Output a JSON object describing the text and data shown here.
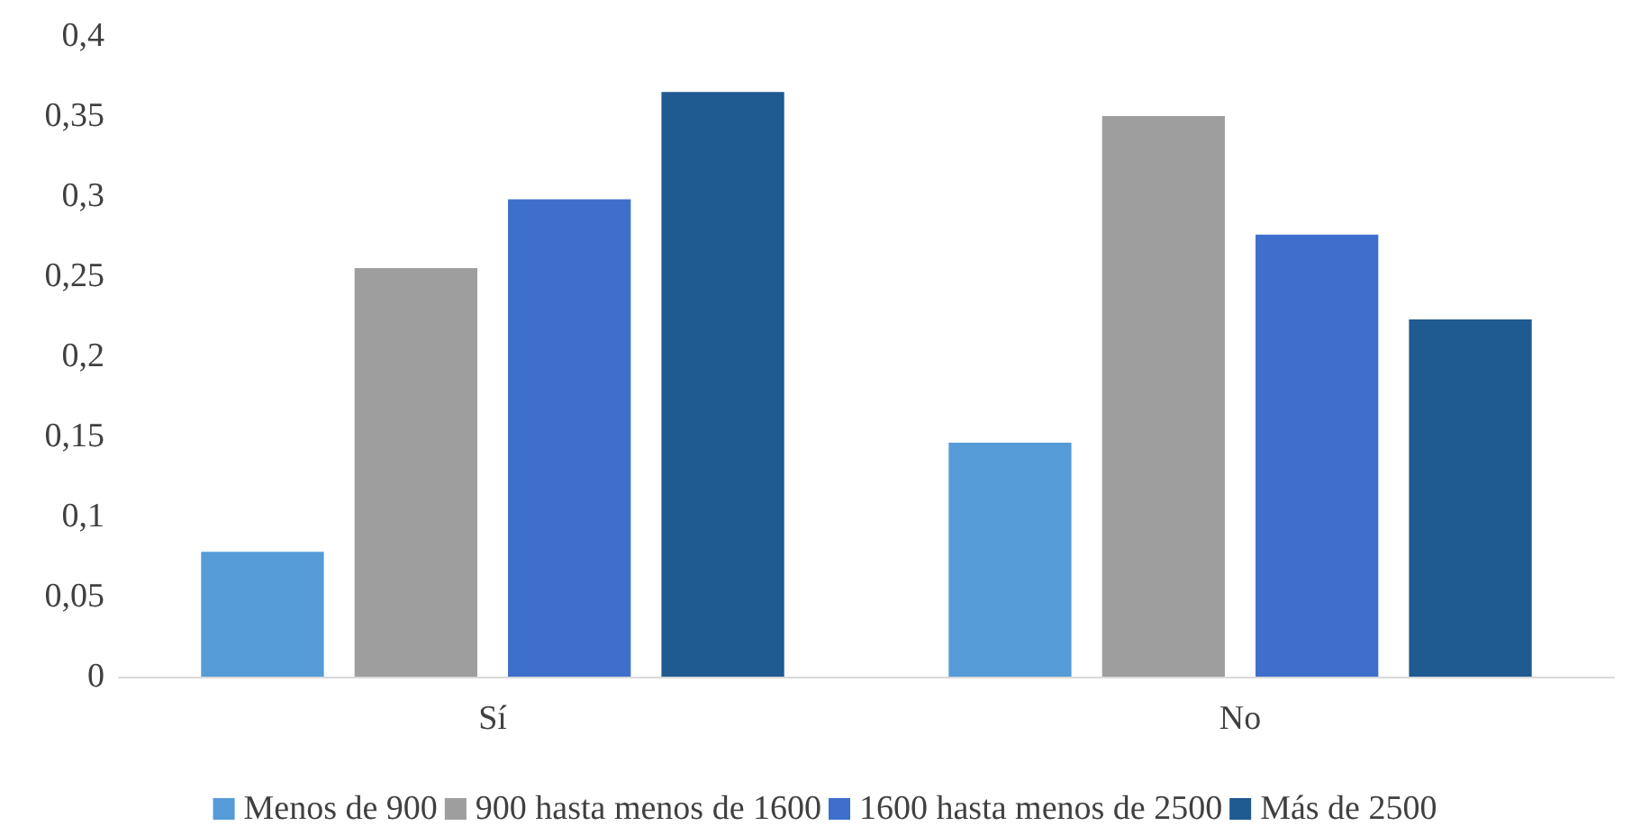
{
  "chart_data": {
    "type": "bar",
    "categories": [
      "Sí",
      "No"
    ],
    "series": [
      {
        "name": "Menos de 900",
        "color": "#559bd8",
        "values": [
          0.078,
          0.146
        ]
      },
      {
        "name": "900 hasta menos de 1600",
        "color": "#9e9e9e",
        "values": [
          0.255,
          0.35
        ]
      },
      {
        "name": "1600 hasta menos de 2500",
        "color": "#3f6fcc",
        "values": [
          0.298,
          0.276
        ]
      },
      {
        "name": "Más de 2500",
        "color": "#1f5a90",
        "values": [
          0.365,
          0.223
        ]
      }
    ],
    "ylim": [
      0,
      0.4
    ],
    "yticks": [
      0,
      {
        "value": 0.05,
        "label": "0,05"
      },
      {
        "value": 0.1,
        "label": "0,1"
      },
      {
        "value": 0.15,
        "label": "0,15"
      },
      {
        "value": 0.2,
        "label": "0,2"
      },
      {
        "value": 0.25,
        "label": "0,25"
      },
      {
        "value": 0.3,
        "label": "0,3"
      },
      {
        "value": 0.35,
        "label": "0,35"
      },
      {
        "value": 0.4,
        "label": "0,4"
      }
    ],
    "grid": false,
    "legend": "bottom"
  }
}
